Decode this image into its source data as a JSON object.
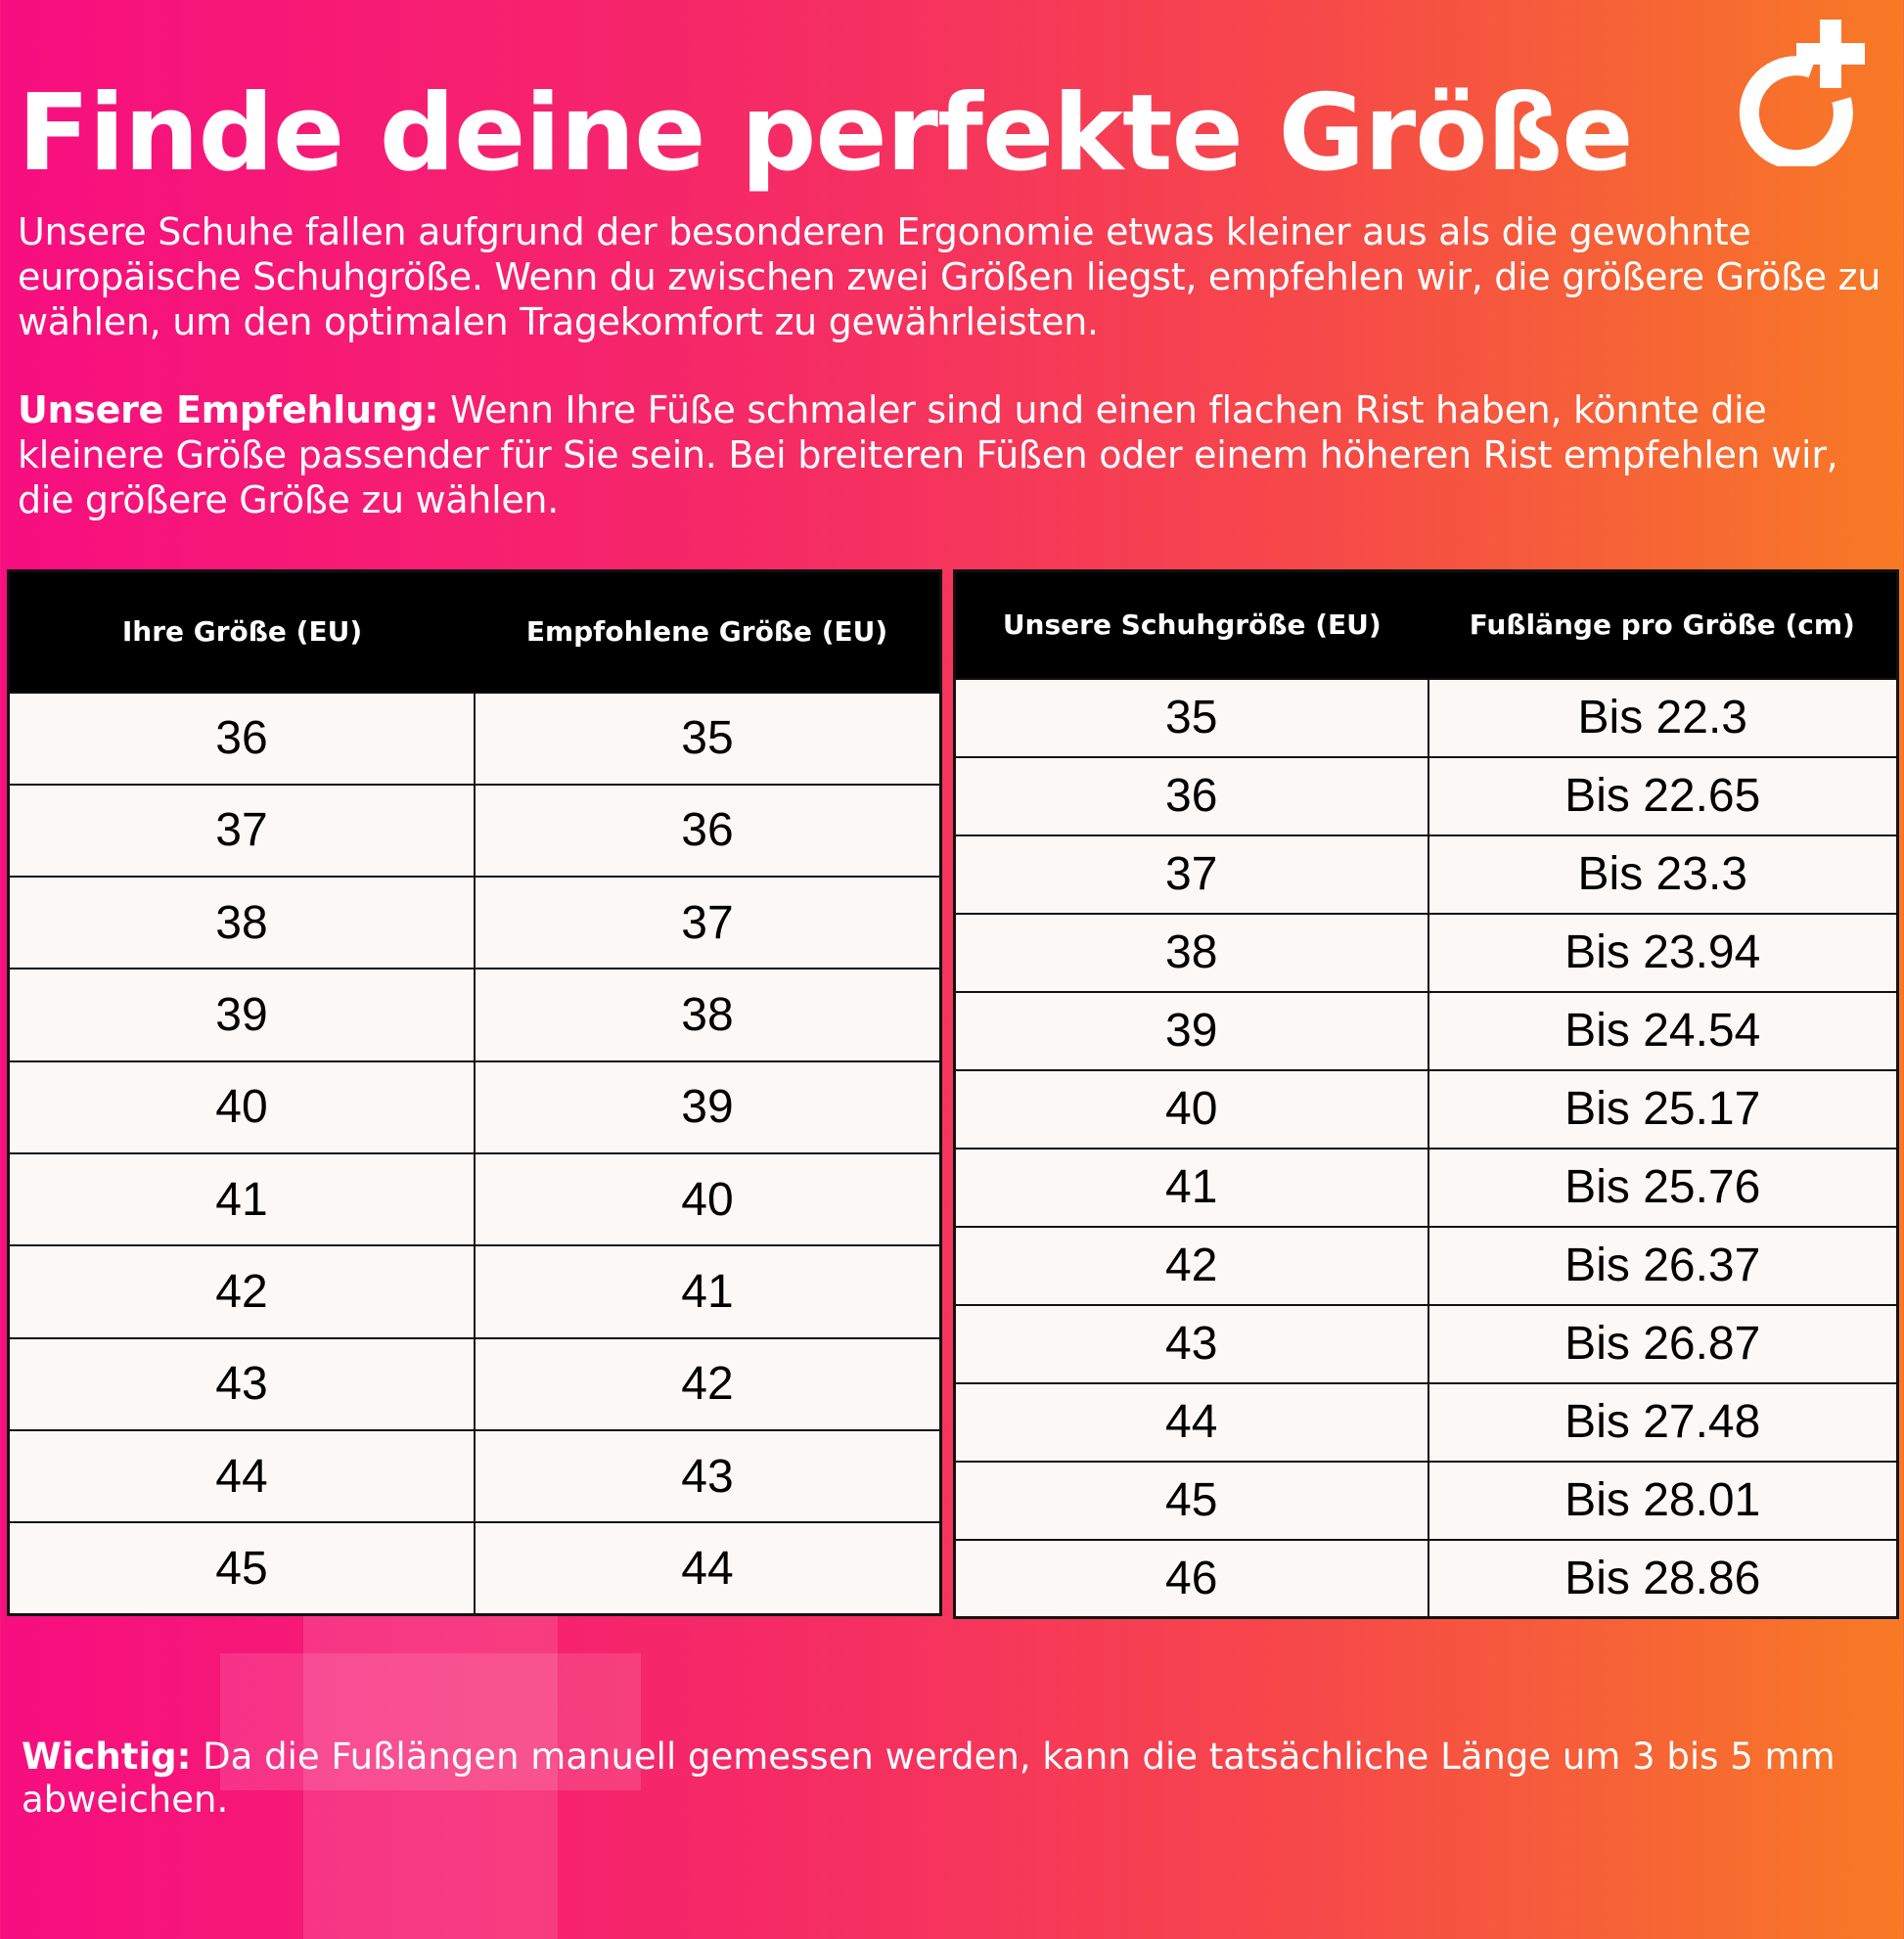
{
  "title": "Finde deine perfekte Größe",
  "intro": "Unsere Schuhe fallen aufgrund der besonderen Ergonomie etwas kleiner aus als die gewohnte europäische Schuhgröße. Wenn du zwischen zwei Größen liegst, empfehlen wir, die größere Größe zu wählen, um den optimalen Tragekomfort zu gewährleisten.",
  "recommendation": {
    "label": "Unsere Empfehlung:",
    "text": " Wenn Ihre Füße schmaler sind und einen flachen Rist haben, könnte die kleinere Größe passender für Sie sein. Bei breiteren Füßen oder einem höheren Rist empfehlen wir, die größere Größe zu wählen."
  },
  "logo": "logo-circle-plus-icon",
  "table1": {
    "headers": [
      "Ihre Größe (EU)",
      "Empfohlene Größe (EU)"
    ],
    "rows": [
      [
        "36",
        "35"
      ],
      [
        "37",
        "36"
      ],
      [
        "38",
        "37"
      ],
      [
        "39",
        "38"
      ],
      [
        "40",
        "39"
      ],
      [
        "41",
        "40"
      ],
      [
        "42",
        "41"
      ],
      [
        "43",
        "42"
      ],
      [
        "44",
        "43"
      ],
      [
        "45",
        "44"
      ]
    ]
  },
  "table2": {
    "headers": [
      "Unsere Schuhgröße (EU)",
      "Fußlänge pro Größe (cm)"
    ],
    "rows": [
      [
        "35",
        "Bis 22.3"
      ],
      [
        "36",
        "Bis 22.65"
      ],
      [
        "37",
        "Bis 23.3"
      ],
      [
        "38",
        "Bis 23.94"
      ],
      [
        "39",
        "Bis 24.54"
      ],
      [
        "40",
        "Bis 25.17"
      ],
      [
        "41",
        "Bis 25.76"
      ],
      [
        "42",
        "Bis 26.37"
      ],
      [
        "43",
        "Bis 26.87"
      ],
      [
        "44",
        "Bis 27.48"
      ],
      [
        "45",
        "Bis 28.01"
      ],
      [
        "46",
        "Bis 28.86"
      ]
    ]
  },
  "footer": {
    "label": "Wichtig:",
    "text": " Da die Fußlängen manuell gemessen werden, kann die tatsächliche Länge um 3 bis 5 mm abweichen."
  },
  "colors": {
    "gradient_left": "#f70e80",
    "gradient_right": "#f77a25",
    "header_bg": "#000000",
    "cell_bg": "#fcf8f5"
  }
}
